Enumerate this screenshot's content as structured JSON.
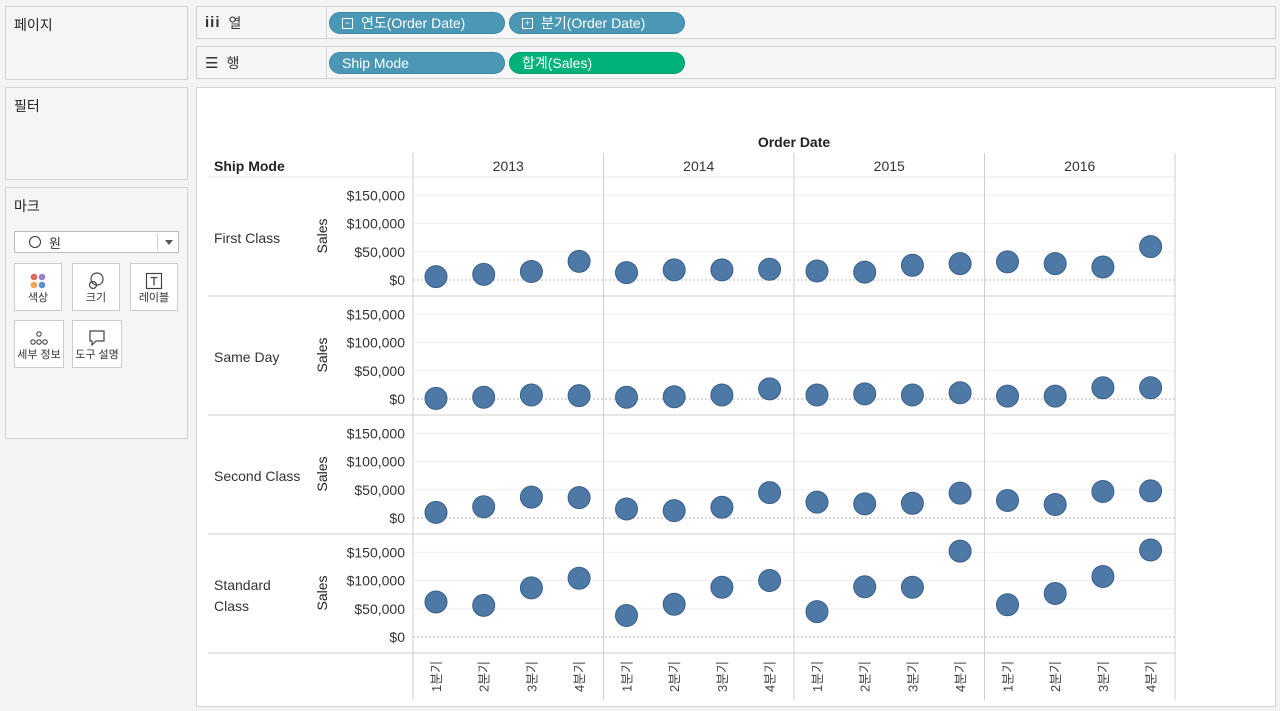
{
  "left_panels": {
    "pages_title": "페이지",
    "filters_title": "필터",
    "marks_title": "마크",
    "mark_type": "원",
    "mark_buttons": [
      {
        "label": "색상",
        "icon": "color-dots-icon"
      },
      {
        "label": "크기",
        "icon": "size-circles-icon"
      },
      {
        "label": "레이블",
        "icon": "label-t-icon"
      },
      {
        "label": "세부 정보",
        "icon": "detail-dots-icon"
      },
      {
        "label": "도구 설명",
        "icon": "tooltip-bubble-icon"
      }
    ]
  },
  "shelves": {
    "columns_label": "열",
    "rows_label": "행",
    "column_pills": [
      "연도(Order Date)",
      "분기(Order Date)"
    ],
    "row_pills": [
      "Ship Mode",
      "합계(Sales)"
    ]
  },
  "chart_data": {
    "type": "scatter",
    "title": "Order Date",
    "row_header": "Ship Mode",
    "ylabel": "Sales",
    "ylim": [
      0,
      160000
    ],
    "yticks": [
      "$150,000",
      "$100,000",
      "$50,000",
      "$0"
    ],
    "ytick_values": [
      150000,
      100000,
      50000,
      0
    ],
    "years": [
      "2013",
      "2014",
      "2015",
      "2016"
    ],
    "quarters": [
      "1분기",
      "2분기",
      "3분기",
      "4분기"
    ],
    "mark_color": "#4e79a7",
    "series": [
      {
        "name": "First Class",
        "values": [
          [
            6000,
            10000,
            15000,
            33000
          ],
          [
            13000,
            18000,
            18000,
            19000
          ],
          [
            16000,
            14000,
            26000,
            29000
          ],
          [
            32000,
            29000,
            23000,
            59000
          ]
        ]
      },
      {
        "name": "Same Day",
        "values": [
          [
            1000,
            3000,
            7000,
            6000
          ],
          [
            3000,
            4000,
            7000,
            18000
          ],
          [
            7000,
            9000,
            7000,
            11000
          ],
          [
            5000,
            5000,
            20000,
            20000
          ]
        ]
      },
      {
        "name": "Second Class",
        "values": [
          [
            10000,
            20000,
            37000,
            36000
          ],
          [
            16000,
            13000,
            19000,
            45000
          ],
          [
            28000,
            25000,
            26000,
            44000
          ],
          [
            31000,
            24000,
            47000,
            48000
          ]
        ]
      },
      {
        "name": "Standard\nClass",
        "values": [
          [
            62000,
            56000,
            87000,
            104000
          ],
          [
            38000,
            58000,
            88000,
            100000
          ],
          [
            45000,
            89000,
            88000,
            152000
          ],
          [
            57000,
            77000,
            107000,
            154000
          ]
        ]
      }
    ]
  }
}
